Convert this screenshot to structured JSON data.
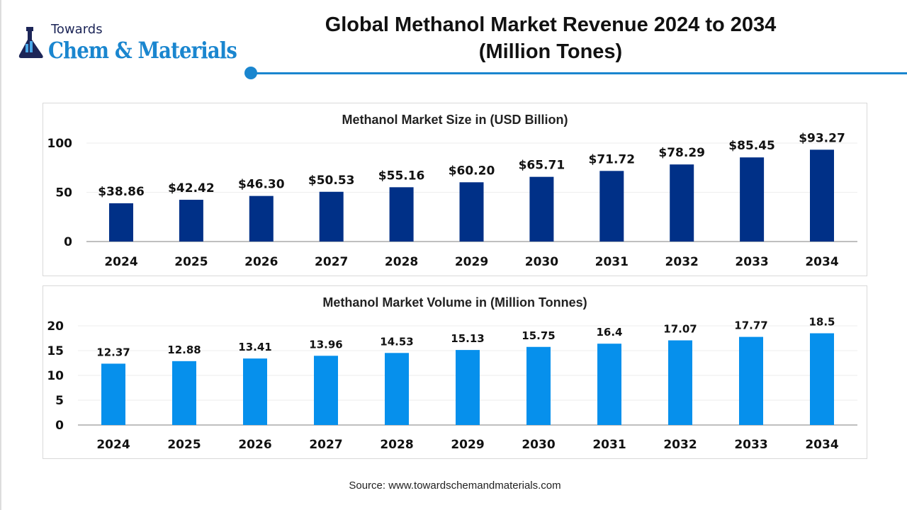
{
  "logo": {
    "towards": "Towards",
    "name": "Chem & Materials"
  },
  "title": {
    "line1": "Global Methanol Market Revenue 2024 to 2034",
    "line2": "(Million Tones)"
  },
  "colors": {
    "accent": "#1a86cf",
    "size_bar": "#003087",
    "volume_bar": "#0690ec"
  },
  "chart_data": [
    {
      "type": "bar",
      "title": "Methanol Market Size in (USD Billion)",
      "categories": [
        "2024",
        "2025",
        "2026",
        "2027",
        "2028",
        "2029",
        "2030",
        "2031",
        "2032",
        "2033",
        "2034"
      ],
      "values": [
        38.86,
        42.42,
        46.3,
        50.53,
        55.16,
        60.2,
        65.71,
        71.72,
        78.29,
        85.45,
        93.27
      ],
      "labels": [
        "$38.86",
        "$42.42",
        "$46.30",
        "$50.53",
        "$55.16",
        "$60.20",
        "$65.71",
        "$71.72",
        "$78.29",
        "$85.45",
        "$93.27"
      ],
      "yticks": [
        "0",
        "50",
        "100"
      ],
      "ylim": [
        0,
        100
      ]
    },
    {
      "type": "bar",
      "title": "Methanol Market Volume in (Million Tonnes)",
      "categories": [
        "2024",
        "2025",
        "2026",
        "2027",
        "2028",
        "2029",
        "2030",
        "2031",
        "2032",
        "2033",
        "2034"
      ],
      "values": [
        12.37,
        12.88,
        13.41,
        13.96,
        14.53,
        15.13,
        15.75,
        16.4,
        17.07,
        17.77,
        18.5
      ],
      "labels": [
        "12.37",
        "12.88",
        "13.41",
        "13.96",
        "14.53",
        "15.13",
        "15.75",
        "16.4",
        "17.07",
        "17.77",
        "18.5"
      ],
      "yticks": [
        "0",
        "5",
        "10",
        "15",
        "20"
      ],
      "ylim": [
        0,
        20
      ]
    }
  ],
  "source": "Source: www.towardschemandmaterials.com"
}
